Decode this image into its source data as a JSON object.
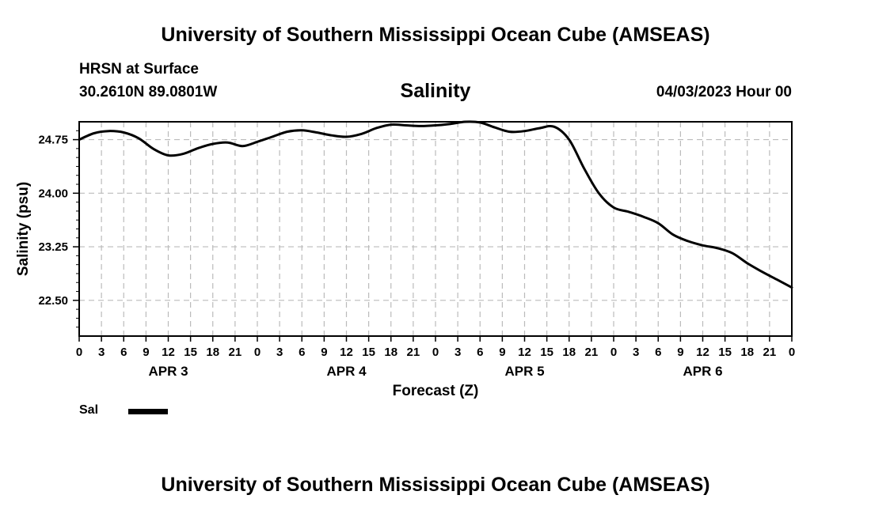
{
  "header": {
    "title": "University of Southern Mississippi Ocean Cube (AMSEAS)",
    "station": "HRSN at Surface",
    "coordinates": "30.2610N  89.0801W",
    "plot_title": "Salinity",
    "datetime": "04/03/2023 Hour 00"
  },
  "footer": {
    "title": "University of Southern Mississippi Ocean Cube (AMSEAS)"
  },
  "legend": {
    "label": "Sal",
    "color": "#000000"
  },
  "chart_data": {
    "type": "line",
    "title": "Salinity",
    "xlabel": "Forecast (Z)",
    "ylabel": "Salinity (psu)",
    "grid": true,
    "xlim": [
      0,
      96
    ],
    "ylim": [
      22.0,
      25.0
    ],
    "y_ticks": [
      22.5,
      23.25,
      24.0,
      24.75
    ],
    "y_tick_labels": [
      "22.50",
      "23.25",
      "24.00",
      "24.75"
    ],
    "x_ticks": [
      0,
      3,
      6,
      9,
      12,
      15,
      18,
      21,
      24,
      27,
      30,
      33,
      36,
      39,
      42,
      45,
      48,
      51,
      54,
      57,
      60,
      63,
      66,
      69,
      72,
      75,
      78,
      81,
      84,
      87,
      90,
      93,
      96
    ],
    "x_tick_labels": [
      "0",
      "3",
      "6",
      "9",
      "12",
      "15",
      "18",
      "21",
      "0",
      "3",
      "6",
      "9",
      "12",
      "15",
      "18",
      "21",
      "0",
      "3",
      "6",
      "9",
      "12",
      "15",
      "18",
      "21",
      "0",
      "3",
      "6",
      "9",
      "12",
      "15",
      "18",
      "21",
      "0"
    ],
    "day_labels": [
      {
        "label": "APR 3",
        "hour": 12
      },
      {
        "label": "APR 4",
        "hour": 36
      },
      {
        "label": "APR 5",
        "hour": 60
      },
      {
        "label": "APR 6",
        "hour": 84
      }
    ],
    "series": [
      {
        "name": "Sal",
        "color": "#000000",
        "x": [
          0,
          2,
          4,
          6,
          8,
          10,
          12,
          14,
          16,
          18,
          20,
          22,
          24,
          26,
          28,
          30,
          32,
          34,
          36,
          38,
          40,
          42,
          44,
          46,
          48,
          50,
          52,
          54,
          56,
          58,
          60,
          62,
          64,
          66,
          68,
          70,
          72,
          74,
          76,
          78,
          80,
          82,
          84,
          86,
          88,
          90,
          92,
          94,
          96
        ],
        "values": [
          24.75,
          24.84,
          24.87,
          24.85,
          24.77,
          24.62,
          24.53,
          24.55,
          24.63,
          24.69,
          24.71,
          24.66,
          24.72,
          24.79,
          24.86,
          24.88,
          24.85,
          24.81,
          24.79,
          24.83,
          24.91,
          24.96,
          24.95,
          24.94,
          24.95,
          24.97,
          25.0,
          24.99,
          24.92,
          24.86,
          24.87,
          24.91,
          24.93,
          24.75,
          24.35,
          24.0,
          23.8,
          23.74,
          23.67,
          23.58,
          23.42,
          23.33,
          23.27,
          23.23,
          23.16,
          23.02,
          22.9,
          22.79,
          22.68
        ]
      }
    ]
  }
}
